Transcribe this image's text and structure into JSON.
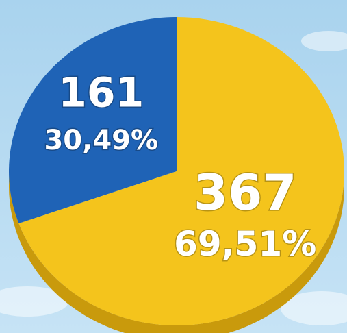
{
  "chart_data": {
    "type": "pie",
    "values": [
      161,
      367
    ],
    "percentages": [
      {
        "value": 30.49,
        "label": "30,49%"
      },
      {
        "value": 69.51,
        "label": "69,51%"
      }
    ],
    "colors": [
      "#1f63b6",
      "#f4c41c"
    ]
  }
}
